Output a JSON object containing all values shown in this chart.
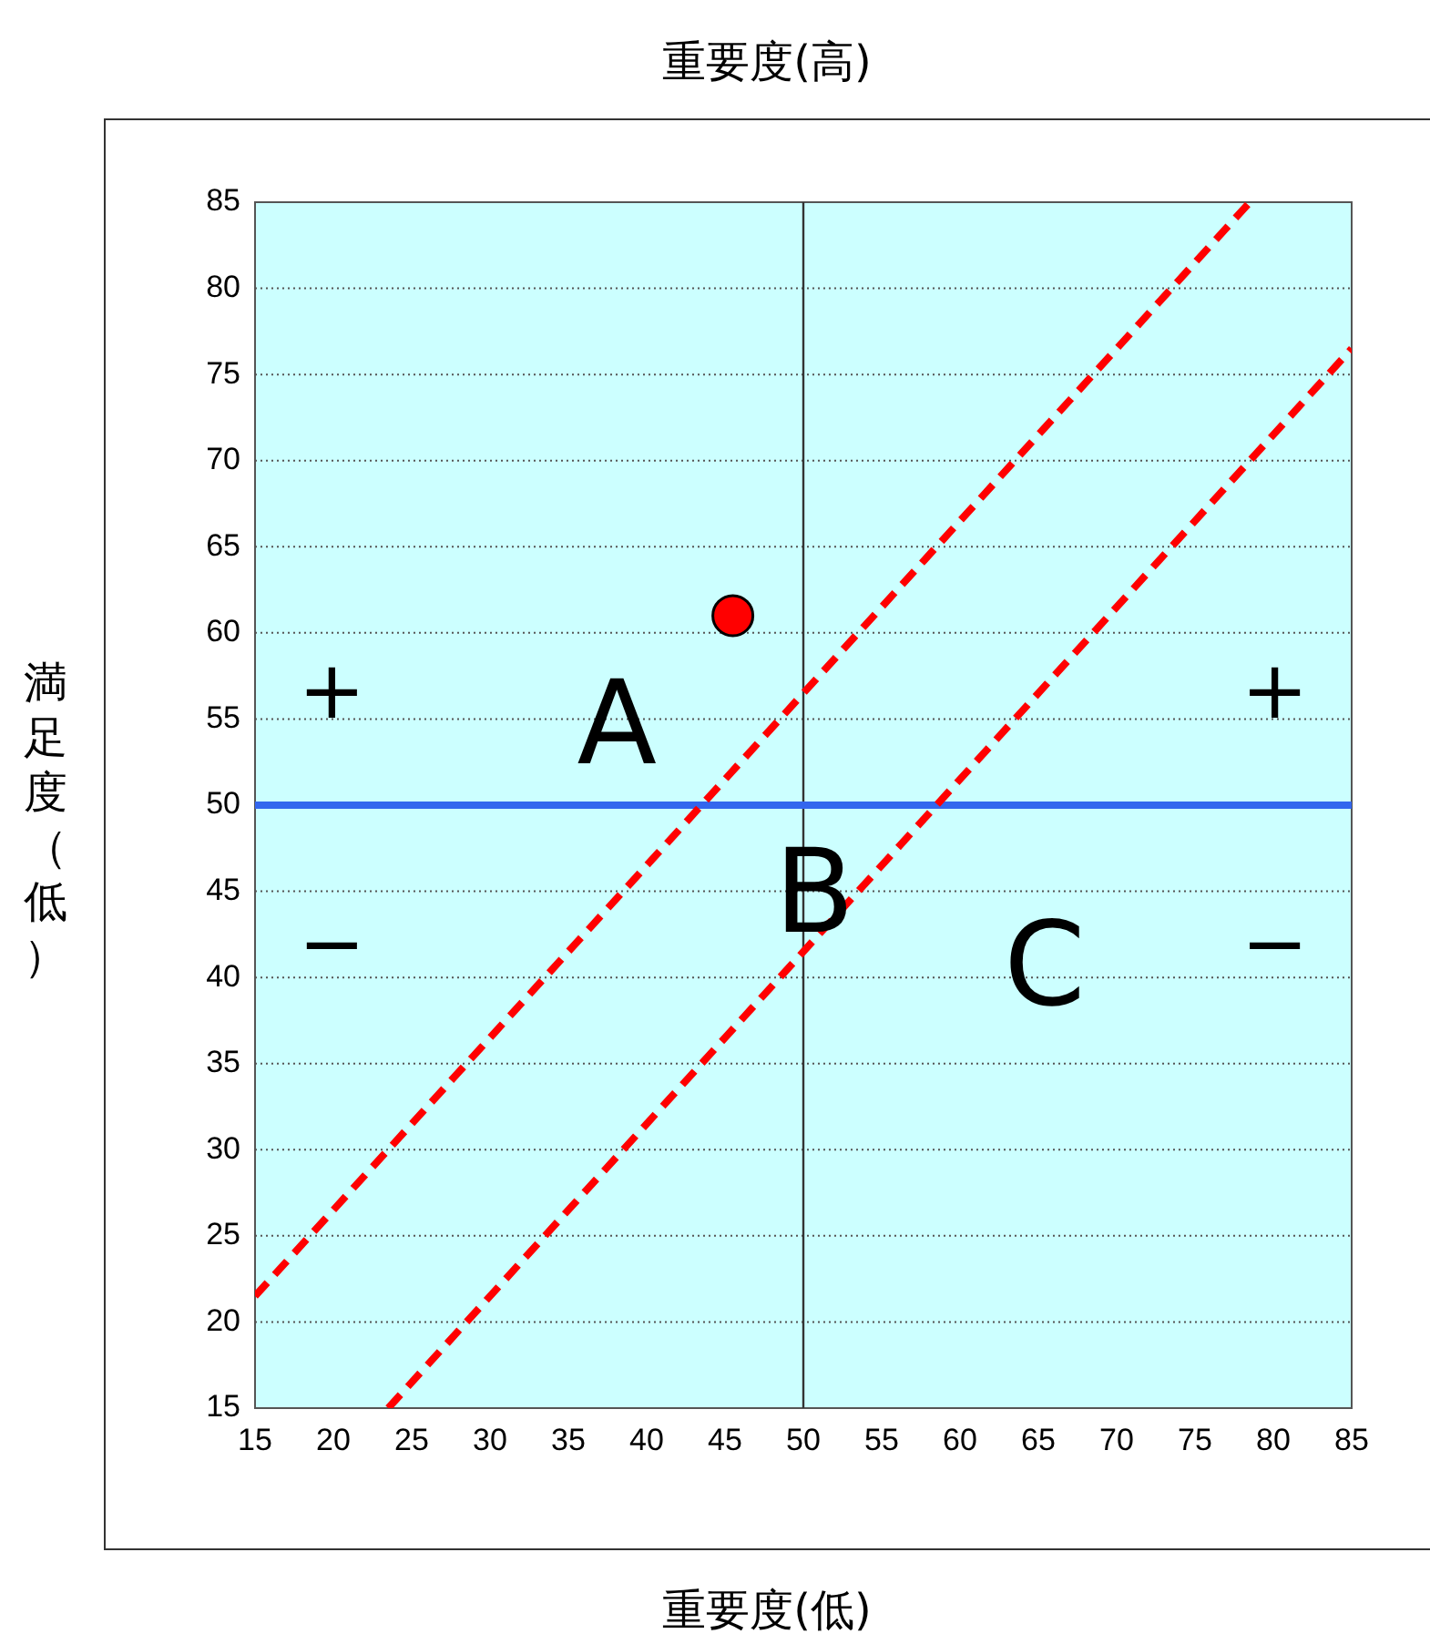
{
  "chart_data": {
    "type": "scatter",
    "title": "重要度(高)",
    "xlabel": "重要度(低)",
    "ylabel": "満足度（低）",
    "xlim": [
      15,
      85
    ],
    "xticks": [
      15,
      20,
      25,
      30,
      35,
      40,
      45,
      50,
      55,
      60,
      65,
      70,
      75,
      80,
      85
    ],
    "ylim": [
      15,
      85
    ],
    "yticks": [
      15,
      20,
      25,
      30,
      35,
      40,
      45,
      50,
      55,
      60,
      65,
      70,
      75,
      80,
      85
    ],
    "grid": "y",
    "legend": false,
    "marker": "circle",
    "series": [
      {
        "type": "scatter",
        "color": "#ff0000",
        "x": [
          45.5
        ],
        "values": [
          61
        ]
      },
      {
        "type": "line",
        "color": "#ff0000",
        "line_style": "dashed",
        "marker": "none",
        "x": [
          15,
          78.5
        ],
        "values": [
          21.5,
          85
        ]
      },
      {
        "type": "line",
        "color": "#ff0000",
        "line_style": "dashed",
        "marker": "none",
        "x": [
          23.5,
          85
        ],
        "values": [
          15,
          76.5
        ]
      }
    ],
    "ref_lines": [
      {
        "axis": "x",
        "value": 50,
        "color": "#333333"
      },
      {
        "axis": "y",
        "value": 50,
        "color": "#3366ee"
      }
    ],
    "annotations": [
      "A",
      "B",
      "C",
      "+",
      "+",
      "−",
      "−"
    ]
  }
}
